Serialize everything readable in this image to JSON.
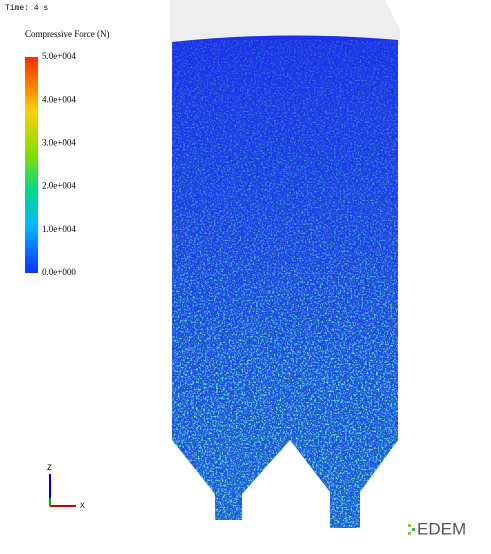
{
  "time_label": "Time: 4 s",
  "colorbar": {
    "title": "Compressive Force (N)",
    "ticks": [
      "5.0e+004",
      "4.0e+004",
      "3.0e+004",
      "2.0e+004",
      "1.0e+004",
      "0.0e+000"
    ]
  },
  "triad": {
    "z": "Z",
    "x": "X"
  },
  "logo": "EDEM"
}
